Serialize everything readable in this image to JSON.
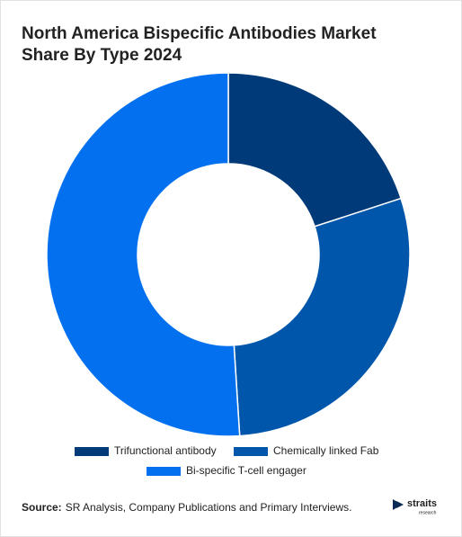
{
  "chart_data": {
    "type": "donut",
    "title": "North America Bispecific Antibodies Market Share By Type 2024",
    "series": [
      {
        "name": "Trifunctional antibody",
        "color": "#013a78",
        "values": [
          20
        ]
      },
      {
        "name": "Chemically linked Fab",
        "color": "#0056ab",
        "values": [
          29
        ]
      },
      {
        "name": "Bi-specific T-cell engager",
        "color": "#0371ef",
        "values": [
          51
        ]
      }
    ]
  },
  "footer": {
    "source_label": "Source:",
    "source": "SR Analysis, Company Publications and Primary Interviews.",
    "logo": "straits",
    "logo_sub": "research"
  }
}
